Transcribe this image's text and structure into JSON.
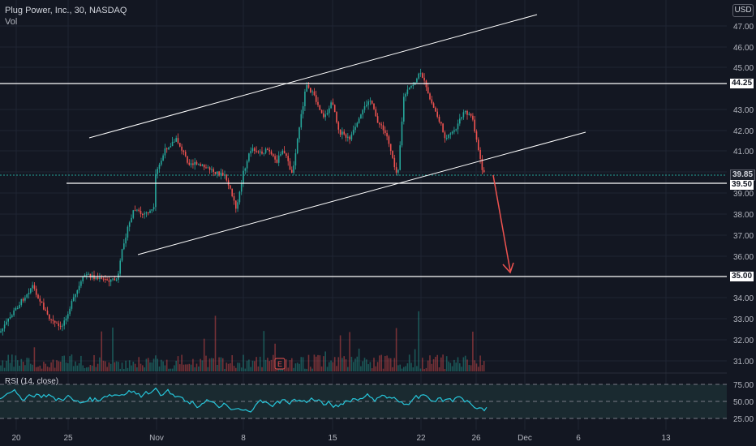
{
  "header": {
    "title": "Plug Power, Inc., 30, NASDAQ",
    "volume_label": "Vol"
  },
  "currency": "USD",
  "rsi": {
    "label": "RSI (14, close)",
    "levels": [
      "75.00",
      "50.00",
      "25.00"
    ]
  },
  "price_axis_labels": [
    "47.00",
    "46.00",
    "45.00",
    "43.00",
    "42.00",
    "41.00",
    "39.00",
    "38.00",
    "37.00",
    "36.00",
    "34.00",
    "33.00",
    "32.00",
    "31.00"
  ],
  "level_tags": [
    {
      "value": "44.25",
      "style": "white"
    },
    {
      "value": "39.85",
      "style": "price"
    },
    {
      "value": "39.50",
      "style": "white"
    },
    {
      "value": "35.00",
      "style": "white"
    }
  ],
  "time_axis_labels": [
    "20",
    "25",
    "Nov",
    "8",
    "15",
    "22",
    "26",
    "Dec",
    "6",
    "13"
  ],
  "event_badge": "E",
  "colors": {
    "background": "#131722",
    "up": "#26a69a",
    "down": "#ef5350",
    "rsi_line": "#26c6da",
    "arrow": "#ef5350",
    "grid": "#1f2433"
  }
}
